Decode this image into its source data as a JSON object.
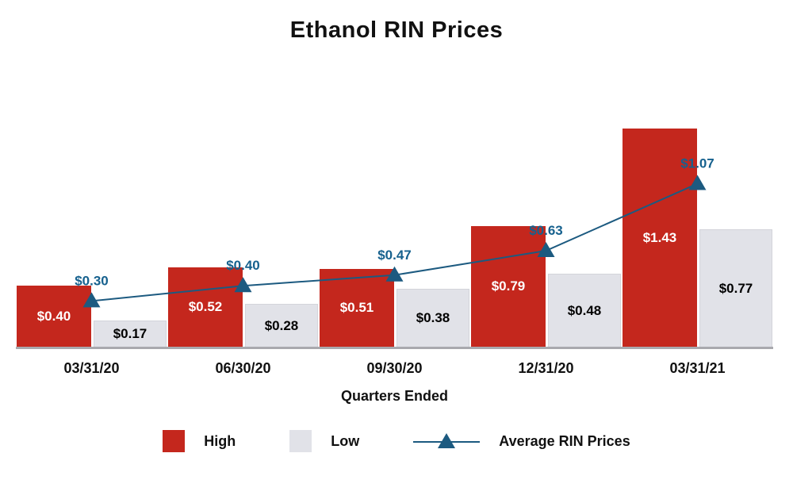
{
  "title": "Ethanol RIN Prices",
  "xlabel": "Quarters Ended",
  "chart_data": {
    "type": "combo",
    "categories": [
      "03/31/20",
      "06/30/20",
      "09/30/20",
      "12/31/20",
      "03/31/21"
    ],
    "series": [
      {
        "name": "High",
        "type": "bar",
        "color": "#c4271d",
        "label_color": "#ffffff",
        "values": [
          0.4,
          0.52,
          0.51,
          0.79,
          1.43
        ]
      },
      {
        "name": "Low",
        "type": "bar",
        "color": "#e1e2e8",
        "label_color": "#000000",
        "values": [
          0.17,
          0.28,
          0.38,
          0.48,
          0.77
        ]
      },
      {
        "name": "Average RIN Prices",
        "type": "line",
        "color": "#1c5a80",
        "label_color": "#16618e",
        "values": [
          0.3,
          0.4,
          0.47,
          0.63,
          1.07
        ]
      }
    ],
    "title": "Ethanol RIN Prices",
    "xlabel": "Quarters Ended",
    "ylim": [
      0,
      1.5
    ],
    "value_prefix": "$",
    "value_decimals": 2,
    "grid": false,
    "legend_position": "bottom"
  }
}
